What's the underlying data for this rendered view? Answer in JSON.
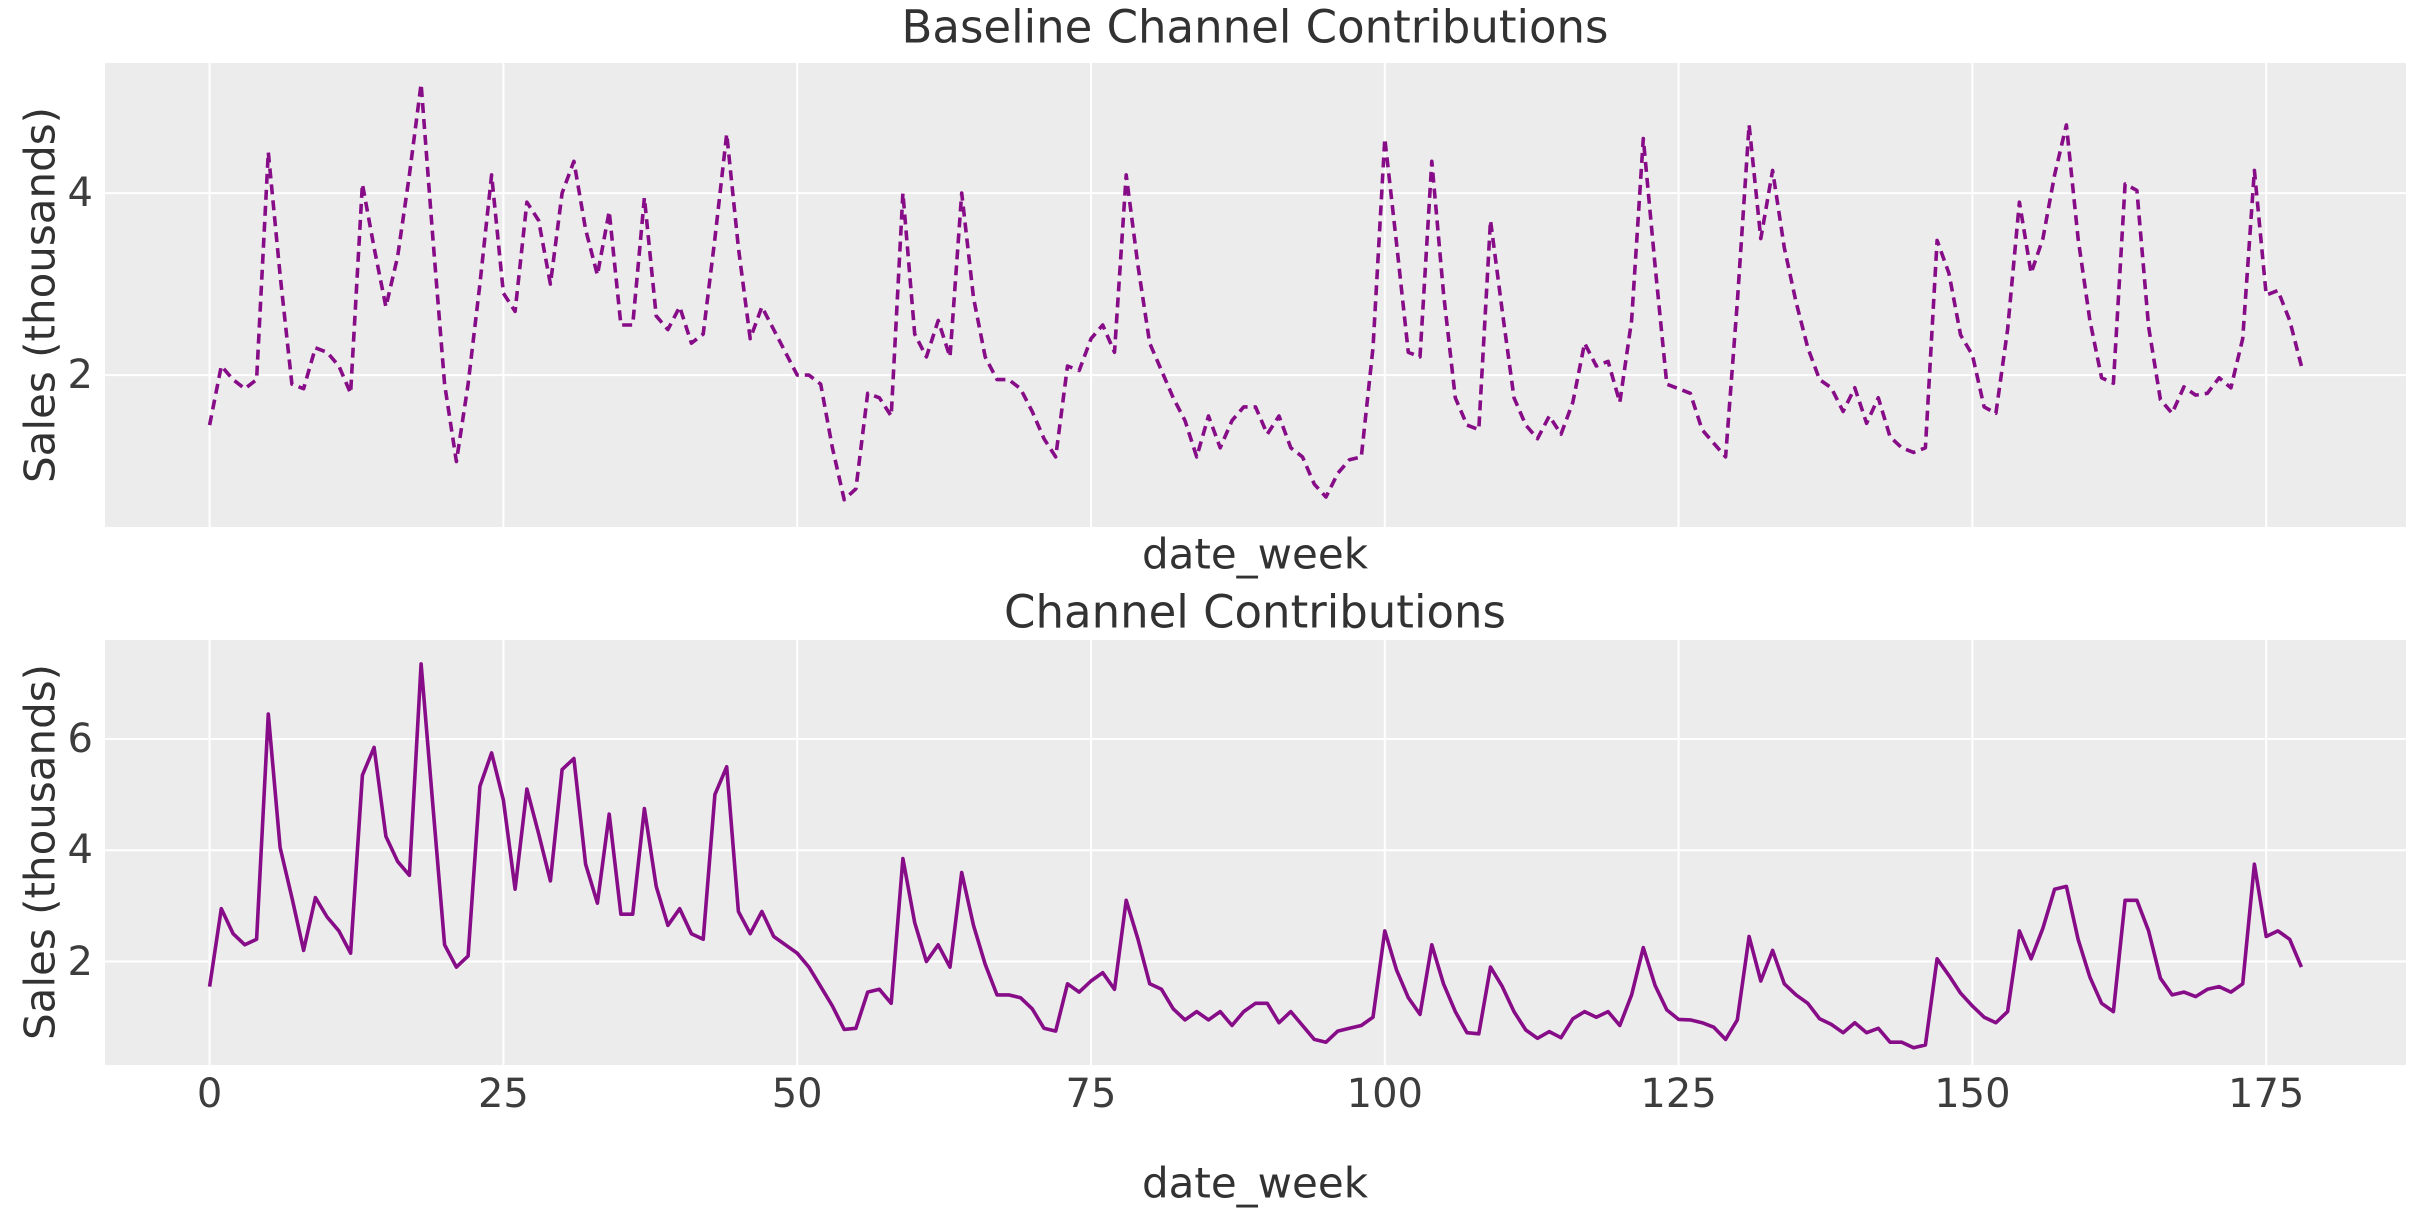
{
  "styles": {
    "figure_bg": "#ffffff",
    "plot_bg": "#ececec",
    "grid_color": "#ffffff",
    "title_color": "#323232",
    "tick_color": "#3d3d3d",
    "line_color": "#870c87"
  },
  "chart_data": [
    {
      "type": "line",
      "title": "Baseline Channel Contributions",
      "xlabel": "date_week",
      "ylabel": "Sales (thousands)",
      "series_name": "baseline-contribution",
      "line_style": "dashed",
      "line_color": "#870c87",
      "grid": true,
      "x_start": 0,
      "x_step": 1,
      "xlim": [
        -8.9,
        186.9
      ],
      "ylim": [
        0.33,
        5.43
      ],
      "xticks": [
        0,
        25,
        50,
        75,
        100,
        125,
        150,
        175
      ],
      "xtick_labels_shown": false,
      "yticks": [
        2,
        4
      ],
      "values": [
        1.45,
        2.1,
        1.95,
        1.85,
        1.95,
        4.45,
        3.1,
        1.9,
        1.85,
        2.3,
        2.25,
        2.1,
        1.8,
        4.1,
        3.4,
        2.75,
        3.3,
        4.2,
        5.2,
        3.5,
        1.9,
        1.05,
        1.9,
        3.0,
        4.2,
        2.9,
        2.7,
        3.9,
        3.7,
        3.0,
        4.0,
        4.35,
        3.6,
        3.1,
        3.8,
        2.55,
        2.55,
        3.95,
        2.65,
        2.5,
        2.75,
        2.35,
        2.45,
        3.5,
        4.65,
        3.4,
        2.4,
        2.75,
        2.5,
        2.25,
        2.0,
        2.0,
        1.9,
        1.2,
        0.63,
        0.75,
        1.8,
        1.75,
        1.55,
        4.0,
        2.45,
        2.2,
        2.6,
        2.2,
        4.0,
        2.85,
        2.2,
        1.95,
        1.95,
        1.85,
        1.6,
        1.3,
        1.1,
        2.1,
        2.05,
        2.4,
        2.55,
        2.25,
        4.2,
        3.2,
        2.35,
        2.05,
        1.75,
        1.5,
        1.1,
        1.55,
        1.2,
        1.5,
        1.65,
        1.65,
        1.35,
        1.55,
        1.2,
        1.1,
        0.8,
        0.66,
        0.92,
        1.07,
        1.1,
        2.3,
        4.6,
        3.45,
        2.25,
        2.2,
        4.35,
        2.9,
        1.75,
        1.45,
        1.4,
        3.7,
        2.7,
        1.75,
        1.45,
        1.3,
        1.55,
        1.35,
        1.7,
        2.35,
        2.1,
        2.15,
        1.7,
        2.6,
        4.6,
        3.2,
        1.9,
        1.85,
        1.8,
        1.4,
        1.25,
        1.1,
        2.8,
        4.75,
        3.5,
        4.25,
        3.4,
        2.8,
        2.3,
        1.95,
        1.86,
        1.6,
        1.86,
        1.47,
        1.75,
        1.32,
        1.2,
        1.15,
        1.2,
        3.48,
        3.12,
        2.44,
        2.22,
        1.65,
        1.58,
        2.5,
        3.9,
        3.12,
        3.5,
        4.2,
        4.75,
        3.5,
        2.6,
        1.97,
        1.91,
        4.1,
        4.03,
        2.53,
        1.73,
        1.58,
        1.87,
        1.78,
        1.8,
        1.97,
        1.86,
        2.4,
        4.25,
        2.88,
        2.93,
        2.6,
        2.1
      ]
    },
    {
      "type": "line",
      "title": "Channel Contributions",
      "xlabel": "date_week",
      "ylabel": "Sales (thousands)",
      "series_name": "channel-contribution",
      "line_style": "solid",
      "line_color": "#870c87",
      "grid": true,
      "x_start": 0,
      "x_step": 1,
      "xlim": [
        -8.9,
        186.9
      ],
      "ylim": [
        0.14,
        7.78
      ],
      "xticks": [
        0,
        25,
        50,
        75,
        100,
        125,
        150,
        175
      ],
      "xtick_labels_shown": true,
      "yticks": [
        2,
        4,
        6
      ],
      "values": [
        1.55,
        2.95,
        2.5,
        2.3,
        2.4,
        6.45,
        4.05,
        3.15,
        2.2,
        3.15,
        2.8,
        2.55,
        2.15,
        5.35,
        5.85,
        4.25,
        3.8,
        3.55,
        7.35,
        4.8,
        2.3,
        1.9,
        2.1,
        5.15,
        5.75,
        4.9,
        3.3,
        5.1,
        4.3,
        3.45,
        5.45,
        5.65,
        3.75,
        3.05,
        4.65,
        2.85,
        2.85,
        4.75,
        3.35,
        2.65,
        2.95,
        2.5,
        2.4,
        5.0,
        5.5,
        2.9,
        2.5,
        2.9,
        2.45,
        2.3,
        2.15,
        1.9,
        1.55,
        1.2,
        0.78,
        0.8,
        1.45,
        1.5,
        1.25,
        3.85,
        2.7,
        2.0,
        2.3,
        1.9,
        3.6,
        2.65,
        1.95,
        1.4,
        1.4,
        1.35,
        1.15,
        0.8,
        0.75,
        1.6,
        1.45,
        1.65,
        1.8,
        1.5,
        3.1,
        2.4,
        1.6,
        1.5,
        1.15,
        0.95,
        1.1,
        0.95,
        1.1,
        0.85,
        1.1,
        1.25,
        1.25,
        0.9,
        1.1,
        0.85,
        0.6,
        0.55,
        0.75,
        0.8,
        0.85,
        1.0,
        2.55,
        1.85,
        1.35,
        1.05,
        2.3,
        1.6,
        1.1,
        0.72,
        0.7,
        1.9,
        1.55,
        1.1,
        0.77,
        0.62,
        0.74,
        0.63,
        0.97,
        1.1,
        1.0,
        1.1,
        0.85,
        1.4,
        2.25,
        1.57,
        1.13,
        0.96,
        0.95,
        0.9,
        0.82,
        0.6,
        0.95,
        2.45,
        1.65,
        2.2,
        1.6,
        1.4,
        1.25,
        0.97,
        0.87,
        0.72,
        0.9,
        0.72,
        0.8,
        0.55,
        0.55,
        0.45,
        0.5,
        2.05,
        1.75,
        1.43,
        1.2,
        1.0,
        0.9,
        1.1,
        2.55,
        2.05,
        2.6,
        3.3,
        3.35,
        2.4,
        1.72,
        1.25,
        1.1,
        3.1,
        3.1,
        2.55,
        1.7,
        1.4,
        1.45,
        1.37,
        1.5,
        1.55,
        1.45,
        1.6,
        3.75,
        2.45,
        2.55,
        2.4,
        1.9
      ]
    }
  ]
}
